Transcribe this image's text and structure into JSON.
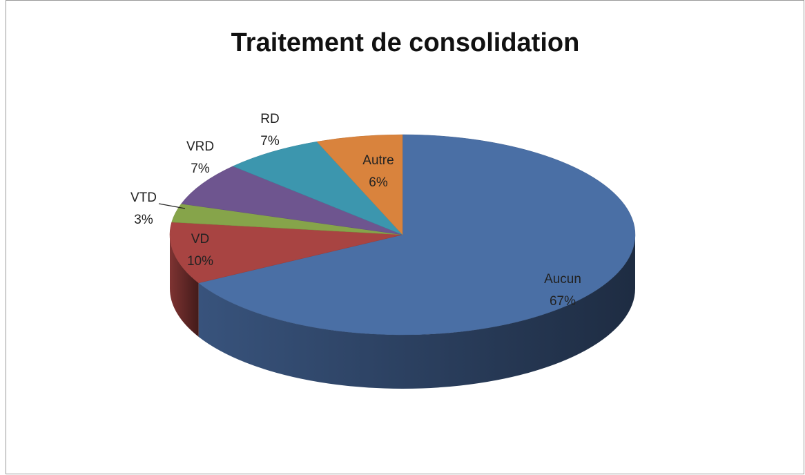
{
  "chart_data": {
    "type": "pie",
    "title": "Traitement de consolidation",
    "categories": [
      "Aucun",
      "VD",
      "VTD",
      "VRD",
      "RD",
      "Autre"
    ],
    "values": [
      67,
      10,
      3,
      7,
      7,
      6
    ],
    "value_labels": [
      "67%",
      "10%",
      "3%",
      "7%",
      "7%",
      "6%"
    ],
    "colors": [
      "#4a6fa5",
      "#a84442",
      "#86a44a",
      "#6e558f",
      "#3c96ae",
      "#d9833d"
    ]
  }
}
